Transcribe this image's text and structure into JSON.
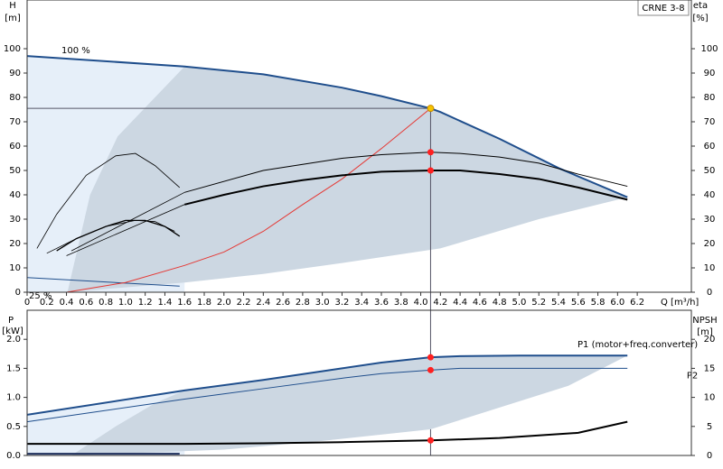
{
  "chart_data": [
    {
      "type": "line",
      "title": "CRNE 3-8",
      "y_label": "H",
      "y_unit": "[m]",
      "y2_label": "eta",
      "y2_unit": "[%]",
      "x_label": "Q [m³/h]",
      "xlim": [
        0,
        6.75
      ],
      "ylim": [
        0,
        120
      ],
      "y2lim": [
        0,
        120
      ],
      "xticks": [
        0,
        0.2,
        0.4,
        0.6,
        0.8,
        {
          "value": 1,
          "label": "1.0"
        },
        1.2,
        1.4,
        1.6,
        1.8,
        {
          "value": 2,
          "label": "2.0"
        },
        2.2,
        2.4,
        2.6,
        2.8,
        {
          "value": 3,
          "label": "3.0"
        },
        3.2,
        3.4,
        3.6,
        3.8,
        {
          "value": 4,
          "label": "4.0"
        },
        4.2,
        4.4,
        4.6,
        4.8,
        {
          "value": 5,
          "label": "5.0"
        },
        5.2,
        5.4,
        5.6,
        5.8,
        {
          "value": 6,
          "label": "6.0"
        },
        6.2
      ],
      "yticks": [
        0,
        10,
        20,
        30,
        40,
        50,
        60,
        70,
        80,
        90,
        100
      ],
      "y2ticks": [
        0,
        10,
        20,
        30,
        40,
        50,
        60,
        70,
        80,
        90,
        100
      ],
      "areas": [
        {
          "color": "#e6eff9",
          "x": [
            0,
            1.6,
            1.6,
            0
          ],
          "values": [
            97,
            92.7,
            0,
            0
          ]
        },
        {
          "color": "#ccd7e2",
          "x": [
            1.6,
            2.4,
            3.2,
            4.1,
            4.8,
            5.4,
            6.1,
            5.2,
            4.2,
            3.2,
            2.4,
            1.6,
            0.41,
            0.64,
            0.92
          ],
          "values": [
            92.7,
            89.5,
            84,
            75.5,
            63,
            51,
            39,
            30,
            18,
            12,
            7.5,
            4,
            0,
            40,
            64
          ]
        }
      ],
      "series": [
        {
          "name": "100 %",
          "color": "#1f4e8c",
          "width": 2,
          "x": [
            0,
            1.6,
            2.4,
            3.2,
            3.6,
            4.1,
            4.2,
            4.8,
            5.4,
            6.1
          ],
          "values": [
            97,
            92.7,
            89.5,
            84,
            80.5,
            75.5,
            74,
            63,
            51,
            39
          ]
        },
        {
          "name": "25 %",
          "color": "#1f4e8c",
          "width": 1,
          "x": [
            0,
            1.55
          ],
          "values": [
            6,
            2.5
          ]
        },
        {
          "color": "#e53935",
          "width": 1,
          "x": [
            0.4,
            1.0,
            1.6,
            2.0,
            2.4,
            2.8,
            3.2,
            3.6,
            4.1
          ],
          "values": [
            0,
            4,
            11,
            16.5,
            25,
            36,
            46.5,
            59,
            75.5
          ]
        },
        {
          "color": "#000000",
          "width": 1,
          "axis": "y2",
          "x": [
            1.6,
            2.4,
            3.2,
            3.6,
            4.1,
            4.4,
            4.8,
            5.2,
            5.6,
            6.1
          ],
          "values": [
            41,
            50,
            55,
            56.5,
            57.5,
            57,
            55.5,
            53,
            48.5,
            43.5
          ]
        },
        {
          "color": "#000000",
          "width": 2,
          "axis": "y2",
          "x": [
            1.6,
            2.0,
            2.4,
            2.8,
            3.2,
            3.6,
            4.1,
            4.4,
            4.8,
            5.2,
            5.6,
            6.1
          ],
          "values": [
            36,
            40,
            43.5,
            46,
            48,
            49.5,
            50,
            50,
            48.5,
            46.5,
            43,
            38
          ]
        },
        {
          "color": "#000000",
          "width": 0.8,
          "axis": "y2",
          "x": [
            0.45,
            1.6
          ],
          "values": [
            17,
            41
          ]
        },
        {
          "color": "#000000",
          "width": 0.8,
          "axis": "y2",
          "x": [
            0.4,
            1.6
          ],
          "values": [
            15,
            36
          ]
        },
        {
          "color": "#000000",
          "width": 0.8,
          "axis": "y2",
          "x": [
            0.1,
            0.3,
            0.6,
            0.9,
            1.1,
            1.3,
            1.55
          ],
          "values": [
            18,
            32,
            48,
            56,
            57,
            52,
            43
          ]
        },
        {
          "color": "#000000",
          "width": 1.3,
          "axis": "y2",
          "x": [
            0.3,
            0.5,
            0.8,
            1.0,
            1.2,
            1.4,
            1.55
          ],
          "values": [
            17,
            22,
            27,
            29.5,
            29.5,
            27,
            23
          ]
        },
        {
          "color": "#000000",
          "width": 0.8,
          "axis": "y2",
          "x": [
            0.2,
            0.5,
            0.8,
            1.1,
            1.3,
            1.5
          ],
          "values": [
            16,
            22,
            27,
            29.5,
            29,
            25
          ]
        }
      ],
      "markers": [
        {
          "color": "#f5c400",
          "x": 4.1,
          "values": 75.5
        },
        {
          "color": "#ff2020",
          "x": 4.1,
          "values": 57.5,
          "axis": "y2"
        },
        {
          "color": "#ff2020",
          "x": 4.1,
          "values": 50,
          "axis": "y2"
        }
      ]
    },
    {
      "type": "line",
      "y_label": "P",
      "y_unit": "[kW]",
      "y2_label": "NPSH",
      "y2_unit": "[m]",
      "xlim": [
        0,
        6.75
      ],
      "ylim": [
        0,
        2.5
      ],
      "y2lim": [
        0,
        25
      ],
      "yticks": [
        {
          "value": 0,
          "label": "0.0"
        },
        0.5,
        {
          "value": 1,
          "label": "1.0"
        },
        1.5,
        {
          "value": 2,
          "label": "2.0"
        }
      ],
      "y2ticks": [
        0,
        5,
        10,
        15,
        20
      ],
      "areas": [
        {
          "color": "#e6eff9",
          "x": [
            0,
            1.6,
            1.6,
            0
          ],
          "values": [
            0.7,
            1.12,
            0,
            0
          ]
        },
        {
          "color": "#ccd7e2",
          "x": [
            1.6,
            2.4,
            3.2,
            4.1,
            5.0,
            6.1,
            5.5,
            4.1,
            3.0,
            2.0,
            0.45,
            0.9,
            1.3
          ],
          "values": [
            1.12,
            1.3,
            1.5,
            1.69,
            1.72,
            1.72,
            1.2,
            0.45,
            0.25,
            0.1,
            0,
            0.5,
            0.9
          ]
        }
      ],
      "series": [
        {
          "name": "P1 (motor+freq.converter)",
          "color": "#1f4e8c",
          "width": 2,
          "x": [
            0,
            1.6,
            2.4,
            3.2,
            3.6,
            4.1,
            4.4,
            5.0,
            6.1
          ],
          "values": [
            0.7,
            1.12,
            1.3,
            1.5,
            1.6,
            1.69,
            1.71,
            1.72,
            1.72
          ]
        },
        {
          "name": "P2",
          "color": "#1f4e8c",
          "width": 1,
          "x": [
            0,
            1.6,
            2.4,
            3.2,
            3.6,
            4.1,
            4.4,
            6.1
          ],
          "values": [
            0.58,
            0.97,
            1.15,
            1.33,
            1.41,
            1.47,
            1.5,
            1.5
          ]
        },
        {
          "color": "#1f2f5c",
          "width": 2,
          "x": [
            0,
            1.55
          ],
          "values": [
            0.03,
            0.03
          ]
        },
        {
          "color": "#000000",
          "width": 2,
          "axis": "y2",
          "x": [
            0,
            1.6,
            2.4,
            3.2,
            4.1,
            4.8,
            5.6,
            6.1
          ],
          "values": [
            2,
            2,
            2.1,
            2.3,
            2.6,
            3,
            3.9,
            5.8
          ]
        }
      ],
      "markers": [
        {
          "color": "#ff2020",
          "x": 4.1,
          "values": 1.69
        },
        {
          "color": "#ff2020",
          "x": 4.1,
          "values": 1.47
        },
        {
          "color": "#ff2020",
          "x": 4.1,
          "values": 2.6,
          "axis": "y2"
        }
      ]
    }
  ]
}
